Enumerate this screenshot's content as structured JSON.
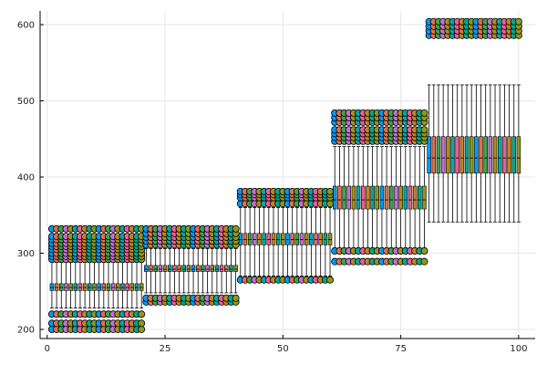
{
  "chart_data": {
    "type": "box",
    "title": "",
    "xlabel": "",
    "ylabel": "",
    "xlim": [
      -1.5,
      103.5
    ],
    "ylim": [
      188,
      618
    ],
    "grid": true,
    "legend": "none",
    "x_ticks": [
      0,
      25,
      50,
      75,
      100
    ],
    "x_tick_labels": [
      "0",
      "25",
      "50",
      "75",
      "100"
    ],
    "y_ticks": [
      200,
      300,
      400,
      500,
      600
    ],
    "y_tick_labels": [
      "200",
      "300",
      "400",
      "500",
      "600"
    ],
    "palette": [
      "#009AFA",
      "#E36F47",
      "#3EA44E",
      "#C371D2",
      "#AC8E18",
      "#00A9AD",
      "#ED5E93",
      "#C68225",
      "#00A98D",
      "#8E971E"
    ],
    "groups": [
      {
        "x_range": [
          1,
          20
        ],
        "whisker_low": 228,
        "q1": 251,
        "median": 255,
        "q3": 260,
        "whisker_high": 288,
        "outliers": [
          200,
          208,
          220,
          292,
          296,
          300,
          305,
          309,
          313,
          318,
          322,
          332
        ]
      },
      {
        "x_range": [
          21,
          40
        ],
        "whisker_low": 248,
        "q1": 276,
        "median": 279,
        "q3": 284,
        "whisker_high": 306,
        "outliers": [
          236,
          241,
          311,
          316,
          321,
          326,
          332
        ]
      },
      {
        "x_range": [
          41,
          60
        ],
        "whisker_low": 270,
        "q1": 311,
        "median": 318,
        "q3": 326,
        "whisker_high": 360,
        "outliers": [
          265,
          365,
          373,
          377,
          381
        ]
      },
      {
        "x_range": [
          61,
          80
        ],
        "whisker_low": 307,
        "q1": 358,
        "median": 370,
        "q3": 388,
        "whisker_high": 440,
        "outliers": [
          289,
          303,
          447,
          452,
          457,
          462,
          472,
          478,
          484
        ]
      },
      {
        "x_range": [
          81,
          100
        ],
        "whisker_low": 341,
        "q1": 405,
        "median": 425,
        "q3": 453,
        "whisker_high": 521,
        "outliers": [
          586,
          592,
          598,
          604
        ]
      }
    ]
  }
}
